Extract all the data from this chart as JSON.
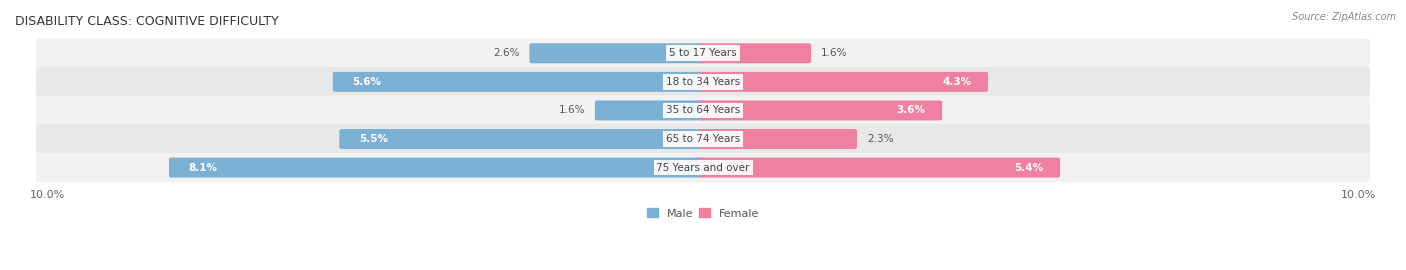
{
  "title": "DISABILITY CLASS: COGNITIVE DIFFICULTY",
  "source": "Source: ZipAtlas.com",
  "categories": [
    "5 to 17 Years",
    "18 to 34 Years",
    "35 to 64 Years",
    "65 to 74 Years",
    "75 Years and over"
  ],
  "male_values": [
    2.6,
    5.6,
    1.6,
    5.5,
    8.1
  ],
  "female_values": [
    1.6,
    4.3,
    3.6,
    2.3,
    5.4
  ],
  "male_color": "#7bafd4",
  "female_color": "#f080a0",
  "row_bg_color_1": "#f2f2f2",
  "row_bg_color_2": "#e8e8e8",
  "max_val": 10.0,
  "title_fontsize": 9,
  "label_fontsize": 7.5,
  "axis_label_fontsize": 8,
  "legend_fontsize": 8,
  "source_fontsize": 7
}
